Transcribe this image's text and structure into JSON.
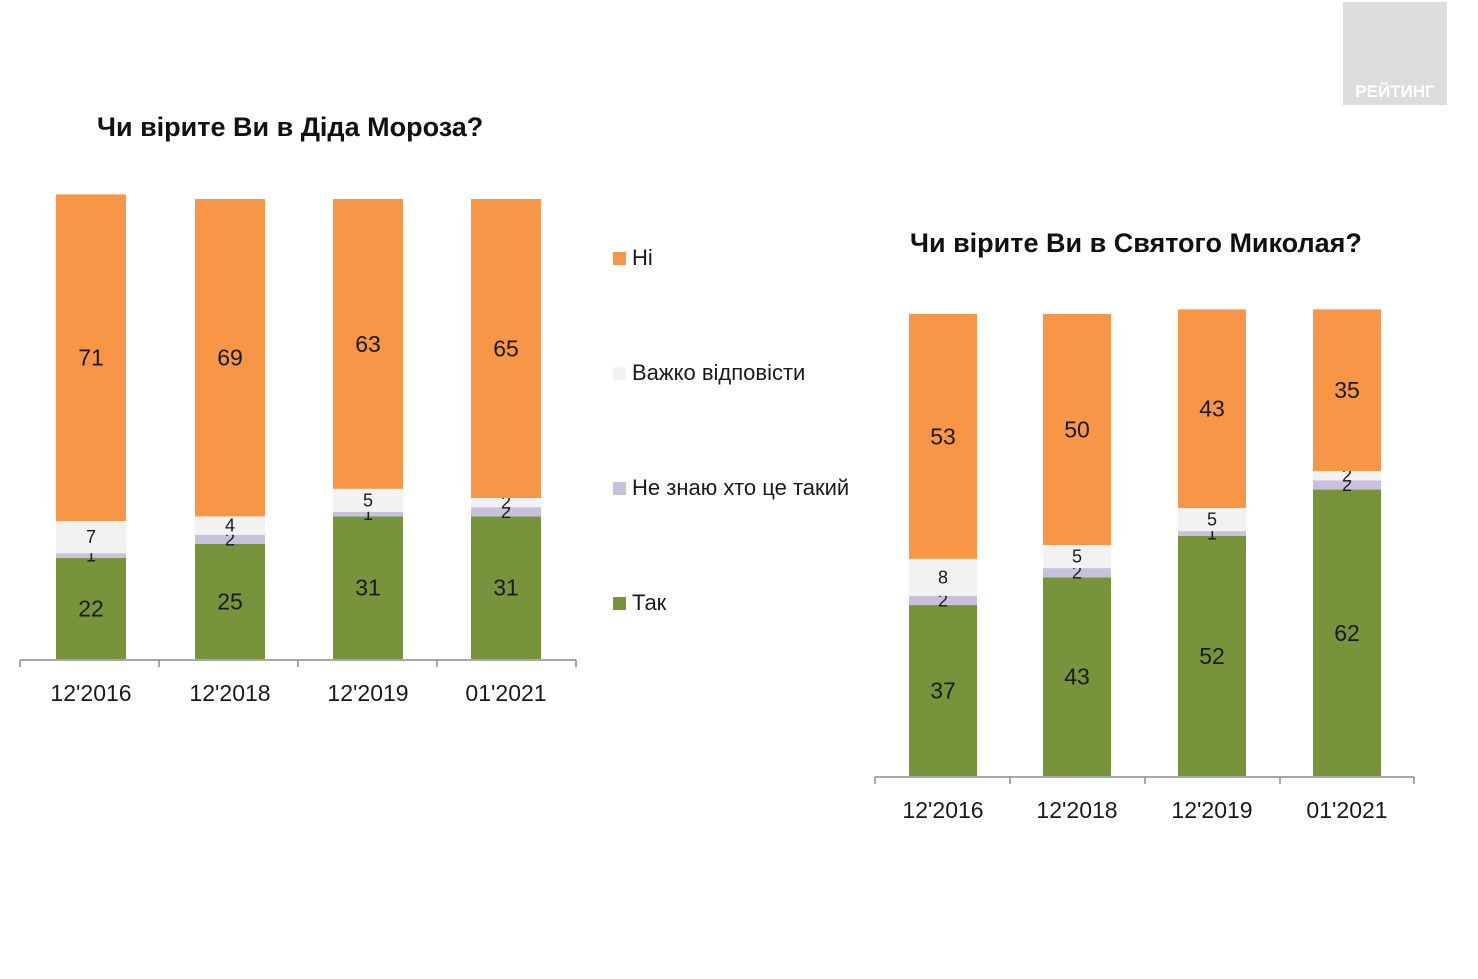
{
  "colors": {
    "Ni": "#f79646",
    "Vazhko": "#f2f2f2",
    "NeZnayu": "#c9c0dd",
    "Tak": "#77933c"
  },
  "logo": {
    "text": "РЕЙТИНГ"
  },
  "legend": [
    {
      "label": "Ні",
      "color": "#f79646"
    },
    {
      "label": "Важко відповісти",
      "color": "#f2f2f2"
    },
    {
      "label": "Не знаю хто це такий",
      "color": "#c9c0dd"
    },
    {
      "label": "Так",
      "color": "#77933c"
    }
  ],
  "chart_data": [
    {
      "type": "bar",
      "stacked": true,
      "title": "Чи вірите Ви в Діда Мороза?",
      "categories": [
        "12'2016",
        "12'2018",
        "12'2019",
        "01'2021"
      ],
      "ylim": [
        0,
        100
      ],
      "series": [
        {
          "name": "Так",
          "values": [
            22,
            25,
            31,
            31
          ]
        },
        {
          "name": "Не знаю хто це такий",
          "values": [
            1,
            2,
            1,
            2
          ]
        },
        {
          "name": "Важко відповісти",
          "values": [
            7,
            4,
            5,
            2
          ]
        },
        {
          "name": "Ні",
          "values": [
            71,
            69,
            63,
            65
          ]
        }
      ]
    },
    {
      "type": "bar",
      "stacked": true,
      "title": "Чи вірите Ви в Святого Миколая?",
      "categories": [
        "12'2016",
        "12'2018",
        "12'2019",
        "01'2021"
      ],
      "ylim": [
        0,
        100
      ],
      "series": [
        {
          "name": "Так",
          "values": [
            37,
            43,
            52,
            62
          ]
        },
        {
          "name": "Не знаю хто це такий",
          "values": [
            2,
            2,
            1,
            2
          ]
        },
        {
          "name": "Важко відповісти",
          "values": [
            8,
            5,
            5,
            2
          ]
        },
        {
          "name": "Ні",
          "values": [
            53,
            50,
            43,
            35
          ]
        }
      ]
    }
  ]
}
